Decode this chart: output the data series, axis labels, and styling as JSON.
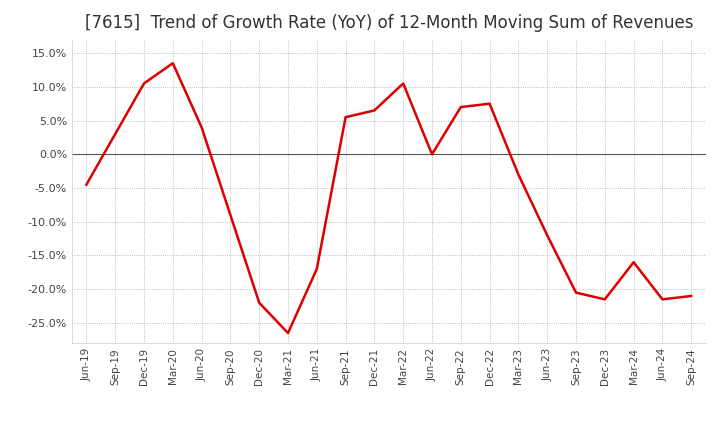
{
  "title": "[7615]  Trend of Growth Rate (YoY) of 12-Month Moving Sum of Revenues",
  "title_fontsize": 12,
  "background_color": "#ffffff",
  "line_color": "#dd0000",
  "grid_color": "#aaaaaa",
  "zero_line_color": "#555555",
  "x_labels": [
    "Jun-19",
    "Sep-19",
    "Dec-19",
    "Mar-20",
    "Jun-20",
    "Sep-20",
    "Dec-20",
    "Mar-21",
    "Jun-21",
    "Sep-21",
    "Dec-21",
    "Mar-22",
    "Jun-22",
    "Sep-22",
    "Dec-22",
    "Mar-23",
    "Jun-23",
    "Sep-23",
    "Dec-23",
    "Mar-24",
    "Jun-24",
    "Sep-24"
  ],
  "y_values": [
    -4.5,
    3.0,
    10.5,
    13.5,
    4.0,
    -9.0,
    -22.0,
    -26.5,
    -17.0,
    5.5,
    6.5,
    10.5,
    0.0,
    7.0,
    7.5,
    -3.0,
    -12.0,
    -20.5,
    -21.5,
    -16.0,
    -21.5,
    -21.0
  ],
  "ylim": [
    -28,
    17
  ],
  "yticks": [
    -25,
    -20,
    -15,
    -10,
    -5,
    0,
    5,
    10,
    15
  ]
}
